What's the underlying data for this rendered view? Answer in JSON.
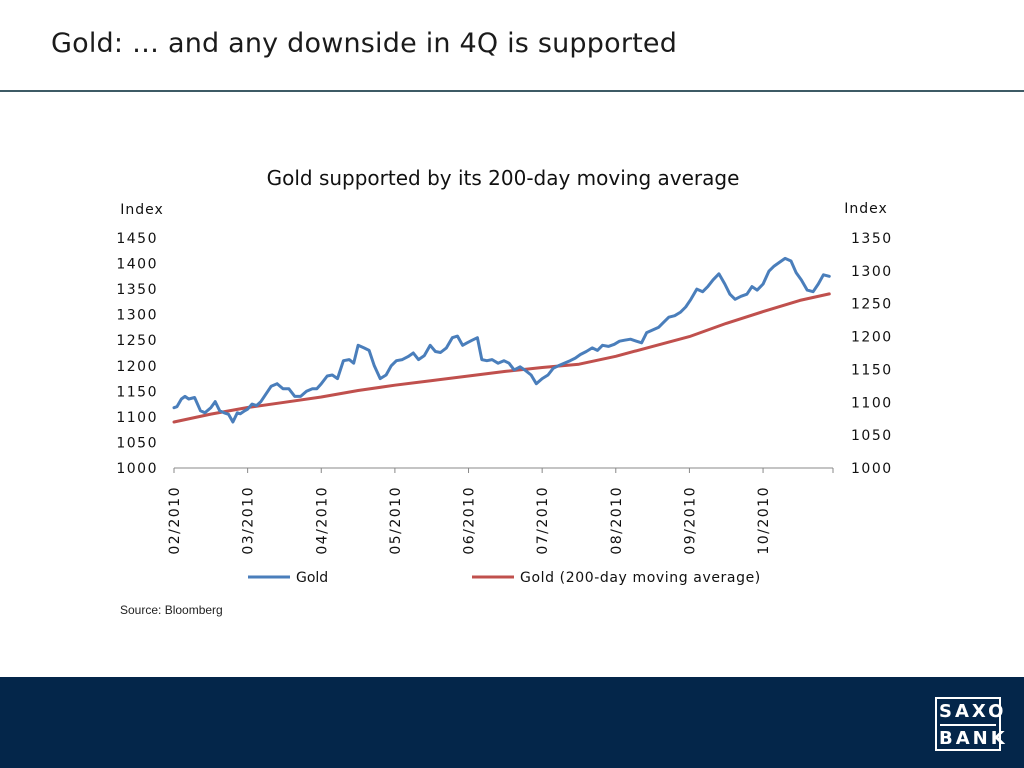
{
  "slide": {
    "title": "Gold: … and any downside in 4Q is supported",
    "source": "Source: Bloomberg",
    "logo": {
      "line1": "SAXO",
      "line2": "BANK"
    },
    "colors": {
      "title_rule": "#3e5b65",
      "footer": "#04264a"
    }
  },
  "chart_data": {
    "type": "line",
    "title": "Gold supported by its 200-day moving average",
    "ylabel_left": "Index",
    "ylabel_right": "Index",
    "ylim_left": [
      1000,
      1450
    ],
    "ylim_right": [
      1000,
      1350
    ],
    "yticks_left": [
      1000,
      1050,
      1100,
      1150,
      1200,
      1250,
      1300,
      1350,
      1400,
      1450
    ],
    "yticks_right": [
      1000,
      1050,
      1100,
      1150,
      1200,
      1250,
      1300,
      1350
    ],
    "x_tick_labels": [
      "02/2010",
      "03/2010",
      "04/2010",
      "05/2010",
      "06/2010",
      "07/2010",
      "08/2010",
      "09/2010",
      "10/2010"
    ],
    "xlim": [
      0,
      8.95
    ],
    "grid": false,
    "legend_position": "bottom",
    "series": [
      {
        "name": "Gold",
        "axis": "left",
        "color": "#4a7ebb",
        "x": [
          0,
          0.04,
          0.1,
          0.15,
          0.2,
          0.28,
          0.36,
          0.42,
          0.5,
          0.56,
          0.62,
          0.68,
          0.74,
          0.8,
          0.86,
          0.9,
          0.96,
          1.0,
          1.06,
          1.12,
          1.18,
          1.25,
          1.32,
          1.4,
          1.48,
          1.56,
          1.64,
          1.72,
          1.8,
          1.88,
          1.94,
          2.0,
          2.08,
          2.15,
          2.22,
          2.3,
          2.38,
          2.44,
          2.5,
          2.58,
          2.65,
          2.72,
          2.8,
          2.88,
          2.95,
          3.02,
          3.1,
          3.18,
          3.25,
          3.32,
          3.4,
          3.48,
          3.55,
          3.62,
          3.7,
          3.78,
          3.85,
          3.92,
          3.98,
          4.05,
          4.12,
          4.18,
          4.25,
          4.32,
          4.4,
          4.48,
          4.55,
          4.62,
          4.7,
          4.78,
          4.85,
          4.92,
          5.0,
          5.08,
          5.15,
          5.22,
          5.3,
          5.38,
          5.45,
          5.52,
          5.6,
          5.68,
          5.75,
          5.82,
          5.9,
          5.98,
          6.05,
          6.12,
          6.2,
          6.28,
          6.35,
          6.42,
          6.5,
          6.58,
          6.65,
          6.72,
          6.8,
          6.88,
          6.95,
          7.02,
          7.1,
          7.18,
          7.25,
          7.32,
          7.4,
          7.48,
          7.55,
          7.62,
          7.7,
          7.78,
          7.85,
          7.92,
          8.0,
          8.08,
          8.15,
          8.22,
          8.3,
          8.38,
          8.45,
          8.52,
          8.6,
          8.68,
          8.75,
          8.82,
          8.9
        ],
        "values": [
          1118,
          1120,
          1135,
          1140,
          1135,
          1138,
          1112,
          1108,
          1118,
          1130,
          1112,
          1108,
          1105,
          1090,
          1108,
          1106,
          1112,
          1115,
          1125,
          1122,
          1130,
          1145,
          1160,
          1165,
          1155,
          1155,
          1140,
          1140,
          1150,
          1155,
          1155,
          1165,
          1180,
          1182,
          1175,
          1210,
          1212,
          1205,
          1240,
          1235,
          1230,
          1200,
          1175,
          1182,
          1200,
          1210,
          1212,
          1218,
          1225,
          1212,
          1220,
          1240,
          1228,
          1226,
          1235,
          1255,
          1258,
          1240,
          1245,
          1250,
          1255,
          1212,
          1210,
          1212,
          1205,
          1210,
          1205,
          1192,
          1198,
          1190,
          1182,
          1165,
          1175,
          1182,
          1195,
          1200,
          1205,
          1210,
          1215,
          1222,
          1228,
          1235,
          1230,
          1240,
          1238,
          1242,
          1248,
          1250,
          1252,
          1248,
          1245,
          1265,
          1270,
          1275,
          1285,
          1295,
          1298,
          1305,
          1315,
          1330,
          1350,
          1345,
          1355,
          1368,
          1380,
          1360,
          1340,
          1330,
          1336,
          1340,
          1355,
          1348,
          1360,
          1385,
          1395,
          1402,
          1410,
          1405,
          1382,
          1368,
          1348,
          1345,
          1360,
          1378,
          1375
        ]
      },
      {
        "name": "Gold (200-day moving average)",
        "axis": "right",
        "color": "#c0504d",
        "x": [
          0,
          0.5,
          1.0,
          1.5,
          2.0,
          2.5,
          3.0,
          3.5,
          4.0,
          4.5,
          5.0,
          5.5,
          6.0,
          6.5,
          7.0,
          7.5,
          8.0,
          8.5,
          8.9
        ],
        "values": [
          1070,
          1082,
          1092,
          1100,
          1108,
          1118,
          1126,
          1133,
          1140,
          1147,
          1153,
          1158,
          1170,
          1185,
          1200,
          1220,
          1238,
          1255,
          1265
        ]
      }
    ]
  }
}
